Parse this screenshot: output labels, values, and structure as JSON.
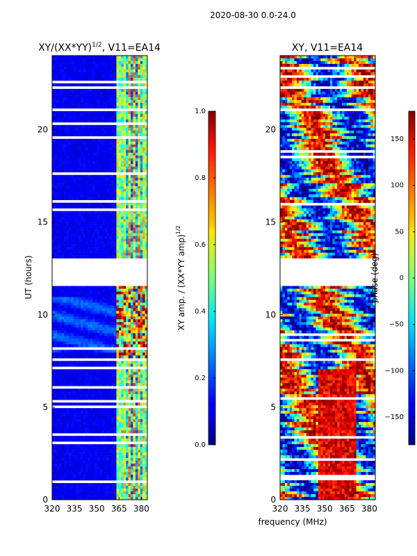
{
  "figure": {
    "suptitle": "2020-08-30 0.0-24.0",
    "shared_xlabel": "frequency (MHz)"
  },
  "chart_data": [
    {
      "type": "heatmap",
      "title": "XY/(XX*YY)^1/2, V11=EA14",
      "title_main": "XY/(XX*YY)",
      "title_exp": "1/2",
      "title_tail": ", V11=EA14",
      "xlabel": "frequency (MHz)",
      "ylabel": "UT (hours)",
      "xlim": [
        320,
        384
      ],
      "ylim": [
        0,
        24
      ],
      "xticks": [
        320,
        335,
        350,
        365,
        380
      ],
      "yticks": [
        0,
        5,
        10,
        15,
        20
      ],
      "colorbar": {
        "label": "XY amp. / (XX*YY amp)^1/2",
        "label_main": "XY amp. / (XX*YY amp)",
        "label_exp": "1/2",
        "range": [
          0.0,
          1.0
        ],
        "ticks": [
          "0.0",
          "0.2",
          "0.4",
          "0.6",
          "0.8",
          "1.0"
        ],
        "tick_values": [
          0.0,
          0.2,
          0.4,
          0.6,
          0.8,
          1.0
        ],
        "colormap": "jet"
      },
      "gaps_hours": [
        [
          11.6,
          13.0
        ],
        [
          22.2,
          22.4
        ],
        [
          7.5,
          7.7
        ],
        [
          21.0,
          21.2
        ]
      ]
    },
    {
      "type": "heatmap",
      "title": "XY, V11=EA14",
      "xlabel": "frequency (MHz)",
      "ylabel": "",
      "xlim": [
        320,
        384
      ],
      "ylim": [
        0,
        24
      ],
      "xticks": [
        320,
        335,
        350,
        365,
        380
      ],
      "yticks": [
        0,
        5,
        10,
        15,
        20
      ],
      "colorbar": {
        "label": "phase (deg)",
        "range": [
          -180,
          180
        ],
        "ticks": [
          "−150",
          "−100",
          "−50",
          "0",
          "50",
          "100",
          "150"
        ],
        "tick_values": [
          -150,
          -100,
          -50,
          0,
          50,
          100,
          150
        ],
        "colormap": "jet"
      },
      "gaps_hours": [
        [
          11.6,
          13.0
        ],
        [
          22.2,
          22.4
        ],
        [
          7.5,
          7.7
        ],
        [
          21.0,
          21.2
        ]
      ]
    }
  ]
}
